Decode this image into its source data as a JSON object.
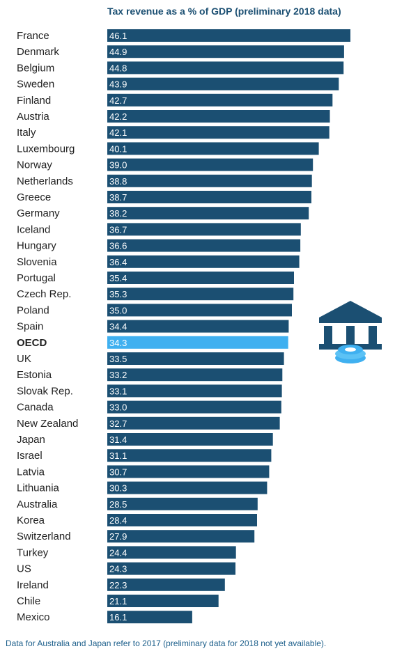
{
  "chart_data": {
    "type": "bar",
    "orientation": "horizontal",
    "title": "Tax revenue as a % of GDP (preliminary 2018 data)",
    "categories": [
      "France",
      "Denmark",
      "Belgium",
      "Sweden",
      "Finland",
      "Austria",
      "Italy",
      "Luxembourg",
      "Norway",
      "Netherlands",
      "Greece",
      "Germany",
      "Iceland",
      "Hungary",
      "Slovenia",
      "Portugal",
      "Czech Rep.",
      "Poland",
      "Spain",
      "OECD",
      "UK",
      "Estonia",
      "Slovak Rep.",
      "Canada",
      "New Zealand",
      "Japan",
      "Israel",
      "Latvia",
      "Lithuania",
      "Australia",
      "Korea",
      "Switzerland",
      "Turkey",
      "US",
      "Ireland",
      "Chile",
      "Mexico"
    ],
    "values": [
      46.1,
      44.9,
      44.8,
      43.9,
      42.7,
      42.2,
      42.1,
      40.1,
      39.0,
      38.8,
      38.7,
      38.2,
      36.7,
      36.6,
      36.4,
      35.4,
      35.3,
      35.0,
      34.4,
      34.3,
      33.5,
      33.2,
      33.1,
      33.0,
      32.7,
      31.4,
      31.1,
      30.7,
      30.3,
      28.5,
      28.4,
      27.9,
      24.4,
      24.3,
      22.3,
      21.1,
      16.1
    ],
    "value_labels": [
      "46.1",
      "44.9",
      "44.8",
      "43.9",
      "42.7",
      "42.2",
      "42.1",
      "40.1",
      "39.0",
      "38.8",
      "38.7",
      "38.2",
      "36.7",
      "36.6",
      "36.4",
      "35.4",
      "35.3",
      "35.0",
      "34.4",
      "34.3",
      "33.5",
      "33.2",
      "33.1",
      "33.0",
      "32.7",
      "31.4",
      "31.1",
      "30.7",
      "30.3",
      "28.5",
      "28.4",
      "27.9",
      "24.4",
      "24.3",
      "22.3",
      "21.1",
      "16.1"
    ],
    "highlight_category": "OECD",
    "colors": {
      "bar": "#1b4f72",
      "highlight": "#3fb0f0",
      "label": "#222222",
      "title": "#1b4f72"
    },
    "xlim": [
      0,
      46.1
    ],
    "grid": false,
    "legend": "none"
  },
  "footnote": "Data for Australia and Japan refer to 2017 (preliminary data for 2018 not yet available).",
  "icon": "bank-coin-icon"
}
